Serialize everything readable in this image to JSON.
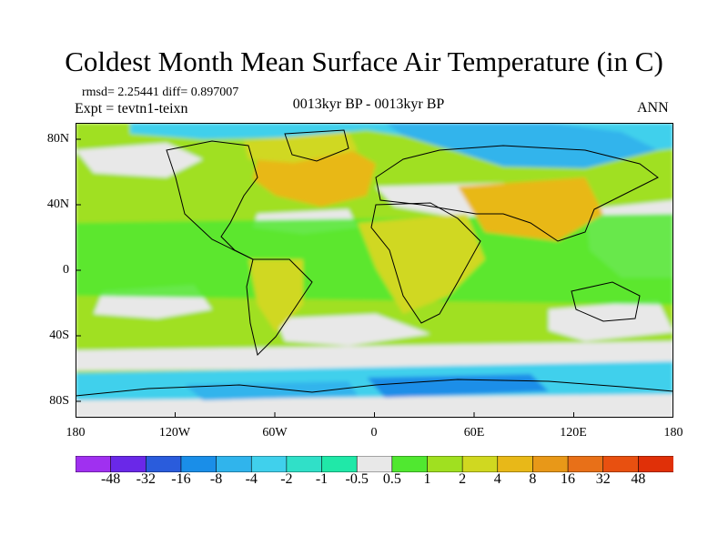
{
  "title": "Coldest Month Mean Surface Air Temperature (in C)",
  "stats_text": "rmsd= 2.25441 diff= 0.897007",
  "expt_text": "Expt = tevtn1-teixn",
  "period_text": "0013kyr BP - 0013kyr BP",
  "season_text": "ANN",
  "lat_labels": [
    "80N",
    "40N",
    "0",
    "40S",
    "80S"
  ],
  "lon_labels": [
    "180",
    "120W",
    "60W",
    "0",
    "60E",
    "120E",
    "180"
  ],
  "colorbar": {
    "labels": [
      "-48",
      "-32",
      "-16",
      "-8",
      "-4",
      "-2",
      "-1",
      "-0.5",
      "0.5",
      "1",
      "2",
      "4",
      "8",
      "16",
      "32",
      "48"
    ],
    "colors": [
      "#a030f0",
      "#6a28e8",
      "#2a5cdc",
      "#1a8ee8",
      "#30b4ec",
      "#40d0ec",
      "#30e0c8",
      "#20e8a8",
      "#e8e8e8",
      "#50e830",
      "#a0e020",
      "#d0d820",
      "#e8b818",
      "#e89818",
      "#e87018",
      "#e85010",
      "#e03008"
    ]
  },
  "palette": {
    "light_green": "#a0e020",
    "green": "#50e830",
    "white": "#e8e8e8",
    "yellow": "#d0d820",
    "orange": "#e8b818",
    "cyan": "#40d0ec",
    "light_blue": "#30b4ec",
    "blue": "#1a8ee8"
  }
}
